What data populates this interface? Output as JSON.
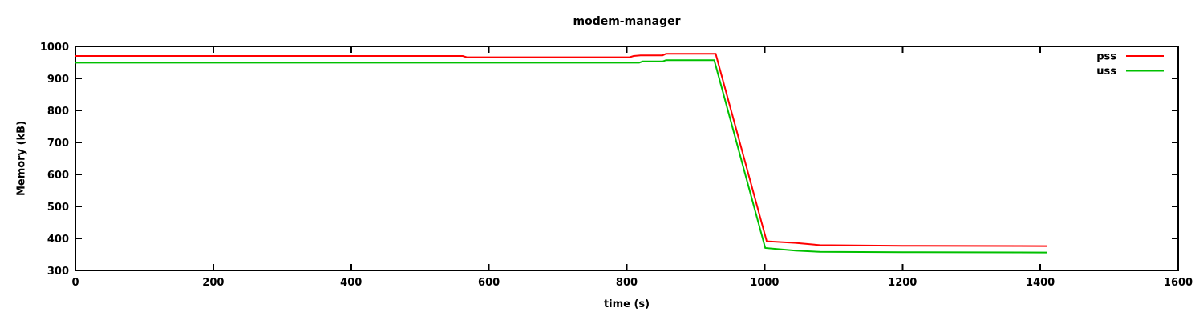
{
  "chart_data": {
    "type": "line",
    "title": "modem-manager",
    "xlabel": "time (s)",
    "ylabel": "Memory (kB)",
    "xlim": [
      0,
      1600
    ],
    "ylim": [
      300,
      1000
    ],
    "xticks": [
      0,
      200,
      400,
      600,
      800,
      1000,
      1200,
      1400,
      1600
    ],
    "yticks": [
      300,
      400,
      500,
      600,
      700,
      800,
      900,
      1000
    ],
    "grid": false,
    "legend_position": "top-right",
    "series": [
      {
        "name": "pss",
        "color": "#ff0000",
        "points": [
          [
            0,
            970
          ],
          [
            562,
            970
          ],
          [
            568,
            966
          ],
          [
            804,
            966
          ],
          [
            810,
            970
          ],
          [
            820,
            972
          ],
          [
            852,
            972
          ],
          [
            857,
            977
          ],
          [
            929,
            977
          ],
          [
            1003,
            391
          ],
          [
            1045,
            386
          ],
          [
            1080,
            379
          ],
          [
            1200,
            377
          ],
          [
            1410,
            376
          ]
        ]
      },
      {
        "name": "uss",
        "color": "#00c000",
        "points": [
          [
            0,
            949
          ],
          [
            818,
            949
          ],
          [
            823,
            953
          ],
          [
            852,
            953
          ],
          [
            857,
            957
          ],
          [
            927,
            957
          ],
          [
            1001,
            370
          ],
          [
            1045,
            362
          ],
          [
            1080,
            358
          ],
          [
            1200,
            357
          ],
          [
            1410,
            356
          ]
        ]
      }
    ]
  },
  "colors": {
    "background": "#ffffff",
    "axis": "#000000",
    "pss": "#ff0000",
    "uss": "#00c000"
  }
}
